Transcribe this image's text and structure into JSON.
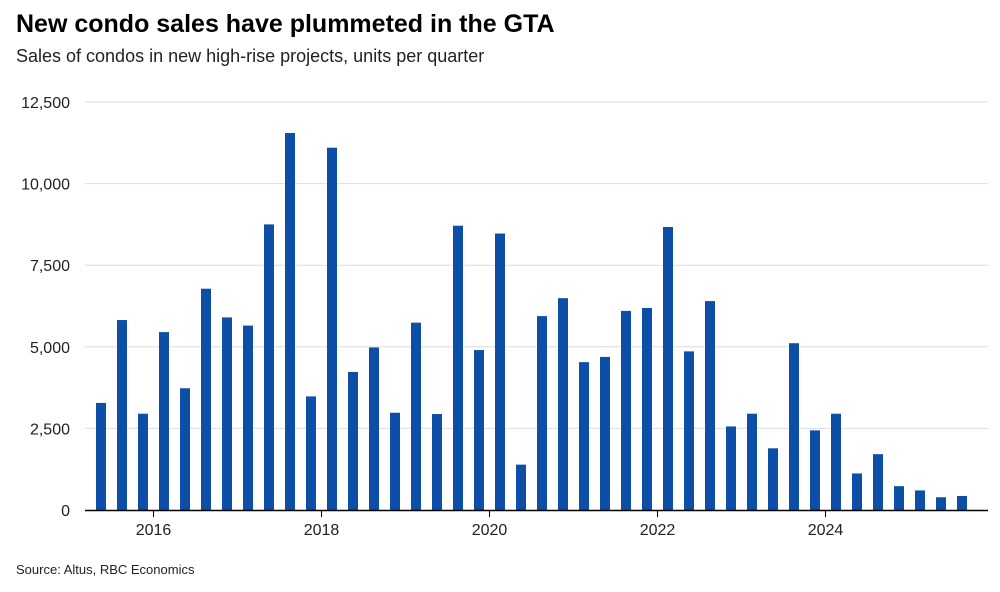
{
  "title": "New condo sales have plummeted in the GTA",
  "subtitle": "Sales of condos in new high-rise projects, units per quarter",
  "source": "Source: Altus, RBC Economics",
  "colors": {
    "bar": "#0d4ea6",
    "grid": "#dddddd",
    "axis": "#000000"
  },
  "chart_data": {
    "type": "bar",
    "title": "New condo sales have plummeted in the GTA",
    "subtitle": "Sales of condos in new high-rise projects, units per quarter",
    "xlabel": "",
    "ylabel": "",
    "ylim": [
      0,
      12500
    ],
    "yticks": [
      0,
      2500,
      5000,
      7500,
      10000,
      12500
    ],
    "ytick_labels": [
      "0",
      "2,500",
      "5,000",
      "7,500",
      "10,000",
      "12,500"
    ],
    "xtick_labels": [
      "2016",
      "2018",
      "2020",
      "2022",
      "2024"
    ],
    "grid": true,
    "categories": [
      "2015 Q2",
      "2015 Q3",
      "2015 Q4",
      "2016 Q1",
      "2016 Q2",
      "2016 Q3",
      "2016 Q4",
      "2017 Q1",
      "2017 Q2",
      "2017 Q3",
      "2017 Q4",
      "2018 Q1",
      "2018 Q2",
      "2018 Q3",
      "2018 Q4",
      "2019 Q1",
      "2019 Q2",
      "2019 Q3",
      "2019 Q4",
      "2020 Q1",
      "2020 Q2",
      "2020 Q3",
      "2020 Q4",
      "2021 Q1",
      "2021 Q2",
      "2021 Q3",
      "2021 Q4",
      "2022 Q1",
      "2022 Q2",
      "2022 Q3",
      "2022 Q4",
      "2023 Q1",
      "2023 Q2",
      "2023 Q3",
      "2023 Q4",
      "2024 Q1",
      "2024 Q2",
      "2024 Q3",
      "2024 Q4",
      "2025 Q1",
      "2025 Q2",
      "2025 Q3"
    ],
    "values": [
      3280,
      5820,
      2950,
      5450,
      3730,
      6780,
      5900,
      5650,
      8750,
      11550,
      3480,
      11100,
      4230,
      4980,
      2980,
      5740,
      2940,
      8710,
      4900,
      8470,
      1390,
      5940,
      6490,
      4530,
      4690,
      6100,
      6190,
      8670,
      4860,
      6400,
      2560,
      2950,
      1890,
      5110,
      2440,
      2950,
      1120,
      1710,
      730,
      600,
      390,
      430
    ]
  }
}
